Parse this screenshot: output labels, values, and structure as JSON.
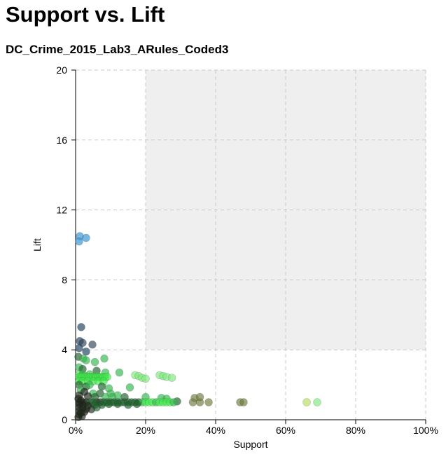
{
  "header": {
    "title": "Support vs. Lift",
    "dataset": "DC_Crime_2015_Lab3_ARules_Coded3"
  },
  "chart_data": {
    "type": "scatter",
    "xlabel": "Support",
    "ylabel": "Lift",
    "xlim": [
      0,
      100
    ],
    "ylim": [
      0,
      20
    ],
    "x_ticks": [
      0,
      20,
      40,
      60,
      80,
      100
    ],
    "x_tick_labels": [
      "0%",
      "20%",
      "40%",
      "60%",
      "80%",
      "100%"
    ],
    "y_ticks": [
      0,
      4,
      8,
      12,
      16,
      20
    ],
    "y_tick_labels": [
      "0",
      "4",
      "8",
      "12",
      "16",
      "20"
    ],
    "grid": true,
    "shaded_region": {
      "x_from": 20,
      "x_to": 100,
      "y_from": 4,
      "y_to": 20,
      "color": "#efefef"
    },
    "colors": {
      "blue": "#2e8fcf",
      "navy": "#173e5c",
      "slate": "#2c4258",
      "dark_green": "#1c5e2a",
      "green": "#2fb54a",
      "bright_green": "#3fe84a",
      "light_green": "#7de87a",
      "olive": "#6b7a3a",
      "dark": "#1b2417",
      "yellow_green": "#b4dc5a"
    },
    "points": [
      {
        "x": 1.2,
        "y": 10.5,
        "c": "blue"
      },
      {
        "x": 1.0,
        "y": 10.2,
        "c": "blue"
      },
      {
        "x": 3.0,
        "y": 10.4,
        "c": "blue"
      },
      {
        "x": 1.6,
        "y": 5.3,
        "c": "navy"
      },
      {
        "x": 1.2,
        "y": 4.5,
        "c": "navy"
      },
      {
        "x": 2.0,
        "y": 4.4,
        "c": "slate"
      },
      {
        "x": 4.8,
        "y": 4.3,
        "c": "slate"
      },
      {
        "x": 1.0,
        "y": 4.1,
        "c": "navy"
      },
      {
        "x": 3.0,
        "y": 3.9,
        "c": "navy"
      },
      {
        "x": 0.8,
        "y": 3.6,
        "c": "dark_green"
      },
      {
        "x": 2.2,
        "y": 3.5,
        "c": "green"
      },
      {
        "x": 3.0,
        "y": 3.4,
        "c": "green"
      },
      {
        "x": 5.5,
        "y": 3.3,
        "c": "green"
      },
      {
        "x": 8.2,
        "y": 3.5,
        "c": "green"
      },
      {
        "x": 1.0,
        "y": 3.0,
        "c": "green"
      },
      {
        "x": 2.0,
        "y": 2.9,
        "c": "dark_green"
      },
      {
        "x": 6.0,
        "y": 2.8,
        "c": "dark_green"
      },
      {
        "x": 1.0,
        "y": 2.6,
        "c": "bright_green"
      },
      {
        "x": 2.0,
        "y": 2.6,
        "c": "green"
      },
      {
        "x": 4.0,
        "y": 2.6,
        "c": "green"
      },
      {
        "x": 8.5,
        "y": 2.7,
        "c": "green"
      },
      {
        "x": 12.5,
        "y": 2.7,
        "c": "green"
      },
      {
        "x": 1.0,
        "y": 2.45,
        "c": "bright_green"
      },
      {
        "x": 1.5,
        "y": 2.45,
        "c": "bright_green"
      },
      {
        "x": 2.0,
        "y": 2.45,
        "c": "bright_green"
      },
      {
        "x": 2.5,
        "y": 2.45,
        "c": "bright_green"
      },
      {
        "x": 3.0,
        "y": 2.45,
        "c": "bright_green"
      },
      {
        "x": 3.5,
        "y": 2.45,
        "c": "bright_green"
      },
      {
        "x": 4.0,
        "y": 2.45,
        "c": "bright_green"
      },
      {
        "x": 4.5,
        "y": 2.45,
        "c": "bright_green"
      },
      {
        "x": 5.0,
        "y": 2.45,
        "c": "bright_green"
      },
      {
        "x": 5.5,
        "y": 2.45,
        "c": "bright_green"
      },
      {
        "x": 6.0,
        "y": 2.45,
        "c": "bright_green"
      },
      {
        "x": 6.5,
        "y": 2.45,
        "c": "bright_green"
      },
      {
        "x": 7.0,
        "y": 2.45,
        "c": "bright_green"
      },
      {
        "x": 7.5,
        "y": 2.45,
        "c": "bright_green"
      },
      {
        "x": 8.0,
        "y": 2.45,
        "c": "bright_green"
      },
      {
        "x": 8.5,
        "y": 2.45,
        "c": "bright_green"
      },
      {
        "x": 9.0,
        "y": 2.45,
        "c": "bright_green"
      },
      {
        "x": 1.0,
        "y": 2.2,
        "c": "bright_green"
      },
      {
        "x": 2.0,
        "y": 2.2,
        "c": "bright_green"
      },
      {
        "x": 3.5,
        "y": 2.2,
        "c": "bright_green"
      },
      {
        "x": 5.0,
        "y": 2.2,
        "c": "bright_green"
      },
      {
        "x": 6.5,
        "y": 2.2,
        "c": "bright_green"
      },
      {
        "x": 8.0,
        "y": 2.2,
        "c": "bright_green"
      },
      {
        "x": 17.0,
        "y": 2.55,
        "c": "light_green"
      },
      {
        "x": 18.0,
        "y": 2.5,
        "c": "light_green"
      },
      {
        "x": 19.0,
        "y": 2.4,
        "c": "light_green"
      },
      {
        "x": 20.0,
        "y": 2.35,
        "c": "light_green"
      },
      {
        "x": 24.0,
        "y": 2.55,
        "c": "light_green"
      },
      {
        "x": 25.0,
        "y": 2.5,
        "c": "light_green"
      },
      {
        "x": 26.0,
        "y": 2.45,
        "c": "light_green"
      },
      {
        "x": 27.5,
        "y": 2.4,
        "c": "light_green"
      },
      {
        "x": 1.0,
        "y": 2.0,
        "c": "dark_green"
      },
      {
        "x": 3.0,
        "y": 1.9,
        "c": "dark_green"
      },
      {
        "x": 4.0,
        "y": 2.0,
        "c": "green"
      },
      {
        "x": 7.5,
        "y": 1.9,
        "c": "dark_green"
      },
      {
        "x": 9.5,
        "y": 1.8,
        "c": "green"
      },
      {
        "x": 15.5,
        "y": 1.85,
        "c": "green"
      },
      {
        "x": 1.5,
        "y": 1.7,
        "c": "green"
      },
      {
        "x": 2.5,
        "y": 1.6,
        "c": "dark"
      },
      {
        "x": 5.0,
        "y": 1.5,
        "c": "green"
      },
      {
        "x": 7.0,
        "y": 1.5,
        "c": "dark_green"
      },
      {
        "x": 10.0,
        "y": 1.5,
        "c": "green"
      },
      {
        "x": 12.0,
        "y": 1.4,
        "c": "green"
      },
      {
        "x": 1.0,
        "y": 1.4,
        "c": "dark"
      },
      {
        "x": 3.5,
        "y": 1.35,
        "c": "dark"
      },
      {
        "x": 5.5,
        "y": 1.3,
        "c": "dark_green"
      },
      {
        "x": 8.5,
        "y": 1.3,
        "c": "green"
      },
      {
        "x": 10.5,
        "y": 1.3,
        "c": "green"
      },
      {
        "x": 14.0,
        "y": 1.3,
        "c": "dark_green"
      },
      {
        "x": 20.0,
        "y": 1.3,
        "c": "green"
      },
      {
        "x": 24.5,
        "y": 1.25,
        "c": "green"
      },
      {
        "x": 26.0,
        "y": 1.2,
        "c": "green"
      },
      {
        "x": 29.0,
        "y": 1.05,
        "c": "dark_green"
      },
      {
        "x": 0.8,
        "y": 1.2,
        "c": "dark"
      },
      {
        "x": 1.5,
        "y": 1.1,
        "c": "dark"
      },
      {
        "x": 1.0,
        "y": 1.0,
        "c": "dark"
      },
      {
        "x": 2.0,
        "y": 1.0,
        "c": "dark"
      },
      {
        "x": 3.0,
        "y": 1.0,
        "c": "dark"
      },
      {
        "x": 4.0,
        "y": 1.0,
        "c": "dark_green"
      },
      {
        "x": 5.0,
        "y": 1.0,
        "c": "dark_green"
      },
      {
        "x": 6.0,
        "y": 1.0,
        "c": "dark_green"
      },
      {
        "x": 7.0,
        "y": 1.0,
        "c": "dark"
      },
      {
        "x": 8.0,
        "y": 1.0,
        "c": "dark_green"
      },
      {
        "x": 9.0,
        "y": 1.0,
        "c": "dark_green"
      },
      {
        "x": 10.0,
        "y": 1.0,
        "c": "dark_green"
      },
      {
        "x": 11.0,
        "y": 1.0,
        "c": "dark_green"
      },
      {
        "x": 12.0,
        "y": 1.0,
        "c": "dark_green"
      },
      {
        "x": 13.0,
        "y": 1.0,
        "c": "dark_green"
      },
      {
        "x": 14.0,
        "y": 1.0,
        "c": "dark_green"
      },
      {
        "x": 15.0,
        "y": 1.0,
        "c": "dark_green"
      },
      {
        "x": 16.0,
        "y": 1.0,
        "c": "dark_green"
      },
      {
        "x": 17.0,
        "y": 1.0,
        "c": "dark_green"
      },
      {
        "x": 18.0,
        "y": 1.0,
        "c": "dark_green"
      },
      {
        "x": 19.0,
        "y": 1.0,
        "c": "green"
      },
      {
        "x": 20.0,
        "y": 1.0,
        "c": "bright_green"
      },
      {
        "x": 21.0,
        "y": 1.0,
        "c": "bright_green"
      },
      {
        "x": 22.0,
        "y": 1.0,
        "c": "bright_green"
      },
      {
        "x": 23.0,
        "y": 1.0,
        "c": "green"
      },
      {
        "x": 24.0,
        "y": 1.0,
        "c": "bright_green"
      },
      {
        "x": 25.0,
        "y": 1.0,
        "c": "bright_green"
      },
      {
        "x": 26.0,
        "y": 1.0,
        "c": "bright_green"
      },
      {
        "x": 27.0,
        "y": 1.0,
        "c": "bright_green"
      },
      {
        "x": 28.0,
        "y": 1.0,
        "c": "green"
      },
      {
        "x": 33.5,
        "y": 1.0,
        "c": "olive"
      },
      {
        "x": 35.5,
        "y": 1.0,
        "c": "olive"
      },
      {
        "x": 38.0,
        "y": 1.0,
        "c": "olive"
      },
      {
        "x": 34.0,
        "y": 1.25,
        "c": "olive"
      },
      {
        "x": 35.5,
        "y": 1.3,
        "c": "olive"
      },
      {
        "x": 47.0,
        "y": 1.0,
        "c": "olive"
      },
      {
        "x": 48.0,
        "y": 1.0,
        "c": "olive"
      },
      {
        "x": 66.0,
        "y": 1.0,
        "c": "yellow_green"
      },
      {
        "x": 69.0,
        "y": 1.0,
        "c": "light_green"
      },
      {
        "x": 1.0,
        "y": 0.9,
        "c": "dark"
      },
      {
        "x": 2.0,
        "y": 0.85,
        "c": "dark"
      },
      {
        "x": 3.5,
        "y": 0.8,
        "c": "dark"
      },
      {
        "x": 5.5,
        "y": 0.85,
        "c": "dark_green"
      },
      {
        "x": 7.5,
        "y": 0.85,
        "c": "dark_green"
      },
      {
        "x": 9.5,
        "y": 0.9,
        "c": "dark_green"
      },
      {
        "x": 12.0,
        "y": 0.9,
        "c": "dark_green"
      },
      {
        "x": 15.0,
        "y": 0.85,
        "c": "dark_green"
      },
      {
        "x": 17.5,
        "y": 0.9,
        "c": "dark_green"
      },
      {
        "x": 1.0,
        "y": 0.7,
        "c": "dark"
      },
      {
        "x": 2.0,
        "y": 0.65,
        "c": "dark"
      },
      {
        "x": 3.0,
        "y": 0.6,
        "c": "dark"
      },
      {
        "x": 4.5,
        "y": 0.6,
        "c": "dark"
      },
      {
        "x": 6.0,
        "y": 0.7,
        "c": "dark_green"
      },
      {
        "x": 1.0,
        "y": 0.5,
        "c": "dark"
      },
      {
        "x": 1.5,
        "y": 0.4,
        "c": "dark"
      },
      {
        "x": 2.5,
        "y": 0.45,
        "c": "dark"
      },
      {
        "x": 1.0,
        "y": 0.3,
        "c": "dark"
      },
      {
        "x": 0.8,
        "y": 0.15,
        "c": "dark"
      },
      {
        "x": 1.8,
        "y": 0.2,
        "c": "dark"
      }
    ]
  }
}
